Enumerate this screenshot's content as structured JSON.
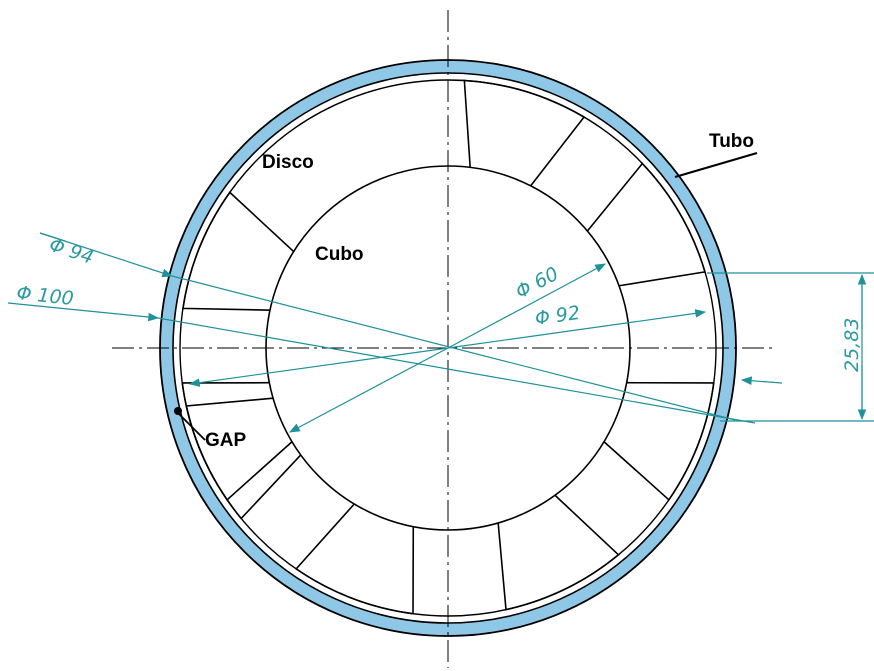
{
  "labels": {
    "tubo": "Tubo",
    "disco": "Disco",
    "cubo": "Cubo",
    "gap": "GAP"
  },
  "dimensions": {
    "d94": "Φ 94",
    "d100": "Φ 100",
    "d60": "Φ 60",
    "d92": "Φ 92",
    "height": "25,83"
  },
  "colors": {
    "tube_fill": "#8fc8e6",
    "dimension_line": "#1e9199",
    "dimension_text": "#2a9aa0",
    "outline": "#000000"
  }
}
